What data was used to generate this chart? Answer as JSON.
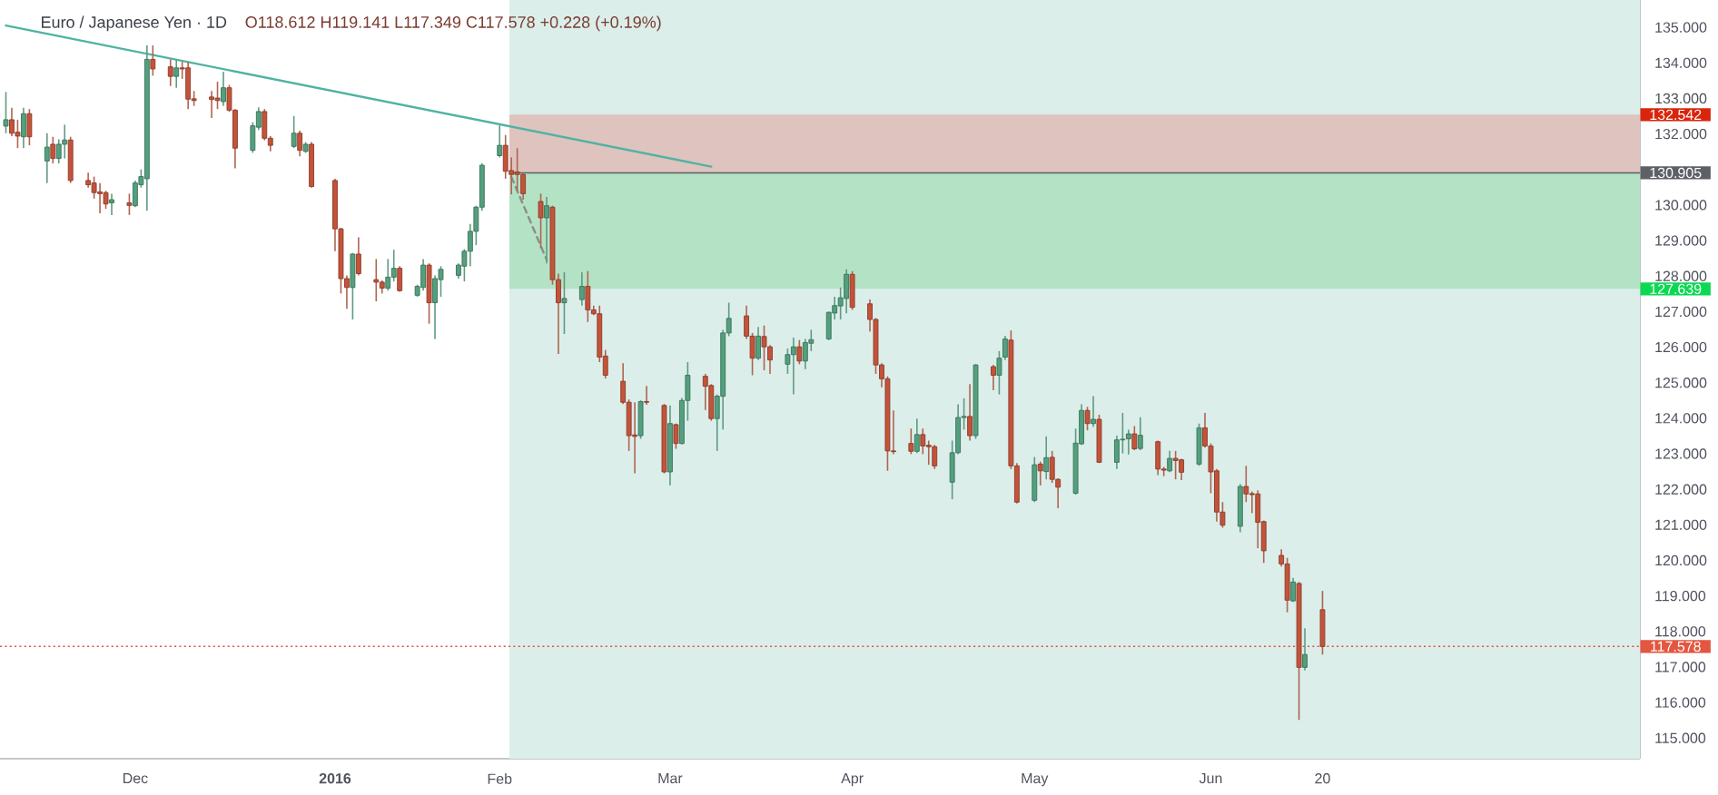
{
  "chart_data": {
    "type": "candlestick",
    "title": "Euro / Japanese Yen · 1D",
    "subtitle": "O118.612 H119.141 L117.349 C117.578 +0.228 (+0.19%)",
    "x": [
      "2015-11-09",
      "2015-11-10",
      "2015-11-11",
      "2015-11-12",
      "2015-11-13",
      "2015-11-16",
      "2015-11-17",
      "2015-11-18",
      "2015-11-19",
      "2015-11-20",
      "2015-11-23",
      "2015-11-24",
      "2015-11-25",
      "2015-11-26",
      "2015-11-27",
      "2015-11-30",
      "2015-12-01",
      "2015-12-02",
      "2015-12-03",
      "2015-12-04",
      "2015-12-07",
      "2015-12-08",
      "2015-12-09",
      "2015-12-10",
      "2015-12-11",
      "2015-12-14",
      "2015-12-15",
      "2015-12-16",
      "2015-12-17",
      "2015-12-18",
      "2015-12-21",
      "2015-12-22",
      "2015-12-23",
      "2015-12-24",
      "2015-12-28",
      "2015-12-29",
      "2015-12-30",
      "2015-12-31",
      "2016-01-04",
      "2016-01-05",
      "2016-01-06",
      "2016-01-07",
      "2016-01-08",
      "2016-01-11",
      "2016-01-12",
      "2016-01-13",
      "2016-01-14",
      "2016-01-15",
      "2016-01-18",
      "2016-01-19",
      "2016-01-20",
      "2016-01-21",
      "2016-01-22",
      "2016-01-25",
      "2016-01-26",
      "2016-01-27",
      "2016-01-28",
      "2016-01-29",
      "2016-02-01",
      "2016-02-02",
      "2016-02-03",
      "2016-02-04",
      "2016-02-05",
      "2016-02-08",
      "2016-02-09",
      "2016-02-10",
      "2016-02-11",
      "2016-02-12",
      "2016-02-15",
      "2016-02-16",
      "2016-02-17",
      "2016-02-18",
      "2016-02-19",
      "2016-02-22",
      "2016-02-23",
      "2016-02-24",
      "2016-02-25",
      "2016-02-26",
      "2016-02-29",
      "2016-03-01",
      "2016-03-02",
      "2016-03-03",
      "2016-03-04",
      "2016-03-07",
      "2016-03-08",
      "2016-03-09",
      "2016-03-10",
      "2016-03-11",
      "2016-03-14",
      "2016-03-15",
      "2016-03-16",
      "2016-03-17",
      "2016-03-18",
      "2016-03-21",
      "2016-03-22",
      "2016-03-23",
      "2016-03-24",
      "2016-03-25",
      "2016-03-28",
      "2016-03-29",
      "2016-03-30",
      "2016-03-31",
      "2016-04-01",
      "2016-04-04",
      "2016-04-05",
      "2016-04-06",
      "2016-04-07",
      "2016-04-08",
      "2016-04-11",
      "2016-04-12",
      "2016-04-13",
      "2016-04-14",
      "2016-04-15",
      "2016-04-18",
      "2016-04-19",
      "2016-04-20",
      "2016-04-21",
      "2016-04-22",
      "2016-04-25",
      "2016-04-26",
      "2016-04-27",
      "2016-04-28",
      "2016-04-29",
      "2016-05-02",
      "2016-05-03",
      "2016-05-04",
      "2016-05-05",
      "2016-05-06",
      "2016-05-09",
      "2016-05-10",
      "2016-05-11",
      "2016-05-12",
      "2016-05-13",
      "2016-05-16",
      "2016-05-17",
      "2016-05-18",
      "2016-05-19",
      "2016-05-20",
      "2016-05-23",
      "2016-05-24",
      "2016-05-25",
      "2016-05-26",
      "2016-05-27",
      "2016-05-30",
      "2016-05-31",
      "2016-06-01",
      "2016-06-02",
      "2016-06-03",
      "2016-06-06",
      "2016-06-07",
      "2016-06-08",
      "2016-06-09",
      "2016-06-10",
      "2016-06-13",
      "2016-06-14",
      "2016-06-15",
      "2016-06-16",
      "2016-06-17",
      "2016-06-20"
    ],
    "ohlc": [
      [
        132.22,
        133.18,
        132.02,
        132.4
      ],
      [
        132.4,
        132.74,
        131.94,
        132.02
      ],
      [
        132.05,
        132.4,
        131.6,
        131.94
      ],
      [
        131.92,
        132.74,
        131.6,
        132.57
      ],
      [
        132.57,
        132.7,
        131.68,
        131.92
      ],
      [
        131.24,
        132.02,
        130.62,
        131.63
      ],
      [
        131.71,
        131.92,
        131.17,
        131.31
      ],
      [
        131.31,
        131.85,
        131.17,
        131.71
      ],
      [
        131.71,
        132.26,
        131.31,
        131.83
      ],
      [
        131.83,
        131.92,
        130.62,
        130.69
      ],
      [
        130.69,
        130.91,
        130.49,
        130.57
      ],
      [
        130.62,
        130.8,
        130.18,
        130.35
      ],
      [
        130.37,
        130.62,
        129.77,
        130.32
      ],
      [
        130.35,
        130.4,
        129.89,
        130.03
      ],
      [
        130.06,
        130.32,
        129.72,
        130.15
      ],
      [
        130.06,
        130.32,
        129.72,
        129.99
      ],
      [
        129.98,
        130.69,
        129.94,
        130.62
      ],
      [
        130.57,
        131.0,
        130.49,
        130.8
      ],
      [
        130.74,
        134.49,
        129.84,
        134.1
      ],
      [
        134.1,
        134.49,
        133.64,
        133.83
      ],
      [
        133.89,
        134.1,
        133.35,
        133.62
      ],
      [
        133.62,
        134.1,
        133.3,
        133.86
      ],
      [
        133.86,
        134.03,
        133.55,
        133.83
      ],
      [
        133.86,
        134.03,
        132.7,
        132.98
      ],
      [
        132.99,
        133.21,
        132.79,
        132.94
      ],
      [
        133.04,
        133.21,
        132.45,
        132.97
      ],
      [
        133.01,
        133.47,
        132.7,
        132.94
      ],
      [
        132.91,
        133.75,
        132.79,
        133.3
      ],
      [
        133.3,
        133.38,
        132.62,
        132.67
      ],
      [
        132.67,
        132.7,
        131.03,
        131.6
      ],
      [
        131.54,
        132.33,
        131.47,
        132.23
      ],
      [
        132.19,
        132.75,
        132.11,
        132.63
      ],
      [
        132.63,
        132.7,
        131.82,
        131.88
      ],
      [
        131.88,
        131.94,
        131.51,
        131.68
      ],
      [
        131.65,
        132.5,
        131.6,
        132.02
      ],
      [
        132.02,
        132.09,
        131.37,
        131.54
      ],
      [
        131.51,
        131.77,
        131.47,
        131.71
      ],
      [
        131.71,
        131.77,
        130.49,
        130.52
      ],
      [
        130.69,
        130.74,
        128.7,
        129.33
      ],
      [
        129.33,
        129.36,
        127.51,
        127.93
      ],
      [
        127.93,
        128.02,
        127.08,
        127.68
      ],
      [
        127.68,
        128.65,
        126.78,
        128.62
      ],
      [
        128.62,
        129.09,
        128.02,
        128.07
      ],
      [
        127.9,
        128.48,
        127.29,
        127.83
      ],
      [
        127.83,
        127.88,
        127.51,
        127.66
      ],
      [
        127.66,
        128.48,
        127.59,
        127.97
      ],
      [
        127.97,
        128.74,
        127.85,
        128.22
      ],
      [
        128.22,
        128.28,
        127.56,
        127.59
      ],
      [
        127.46,
        127.76,
        127.42,
        127.71
      ],
      [
        127.68,
        128.48,
        127.59,
        128.31
      ],
      [
        128.31,
        128.36,
        126.66,
        127.25
      ],
      [
        127.25,
        128.02,
        126.23,
        127.93
      ],
      [
        127.9,
        128.28,
        127.42,
        128.19
      ],
      [
        128.02,
        128.36,
        127.93,
        128.31
      ],
      [
        128.28,
        128.76,
        127.85,
        128.7
      ],
      [
        128.7,
        129.47,
        128.28,
        129.26
      ],
      [
        129.26,
        129.98,
        128.87,
        129.94
      ],
      [
        129.94,
        131.17,
        129.84,
        131.12
      ],
      [
        131.39,
        132.24,
        131.34,
        131.68
      ],
      [
        131.68,
        131.97,
        130.74,
        130.95
      ],
      [
        130.97,
        131.34,
        130.3,
        130.86
      ],
      [
        130.93,
        131.6,
        130.4,
        130.86
      ],
      [
        130.86,
        130.91,
        130.15,
        130.32
      ],
      [
        130.1,
        130.32,
        128.79,
        129.64
      ],
      [
        129.64,
        130.23,
        128.36,
        129.98
      ],
      [
        129.94,
        129.98,
        127.76,
        127.9
      ],
      [
        127.9,
        128.07,
        125.81,
        127.25
      ],
      [
        127.25,
        128.11,
        126.37,
        127.37
      ],
      [
        127.34,
        128.11,
        127.17,
        127.71
      ],
      [
        127.71,
        128.14,
        126.71,
        127.05
      ],
      [
        127.05,
        127.17,
        126.9,
        126.94
      ],
      [
        126.94,
        127.17,
        125.58,
        125.72
      ],
      [
        125.75,
        125.92,
        125.12,
        125.21
      ],
      [
        125.04,
        125.55,
        124.4,
        124.45
      ],
      [
        124.45,
        124.53,
        123.08,
        123.51
      ],
      [
        123.53,
        124.45,
        122.45,
        123.49
      ],
      [
        123.51,
        124.5,
        123.42,
        124.47
      ],
      [
        124.47,
        124.91,
        124.38,
        124.45
      ],
      [
        124.36,
        124.4,
        122.45,
        122.49
      ],
      [
        122.49,
        124.36,
        122.11,
        123.85
      ],
      [
        123.82,
        123.85,
        123.14,
        123.29
      ],
      [
        123.29,
        124.57,
        123.26,
        124.5
      ],
      [
        124.5,
        125.58,
        123.93,
        125.21
      ],
      [
        125.18,
        125.25,
        124.23,
        124.9
      ],
      [
        124.92,
        124.96,
        123.93,
        123.99
      ],
      [
        123.99,
        124.67,
        123.08,
        124.62
      ],
      [
        124.62,
        126.49,
        123.68,
        126.4
      ],
      [
        126.4,
        127.25,
        126.31,
        126.81
      ],
      [
        126.88,
        127.17,
        126.23,
        126.31
      ],
      [
        126.31,
        126.4,
        125.21,
        125.69
      ],
      [
        125.69,
        126.57,
        125.64,
        126.31
      ],
      [
        126.3,
        126.61,
        125.35,
        126.01
      ],
      [
        126.01,
        126.06,
        125.25,
        125.64
      ],
      [
        125.52,
        125.96,
        125.25,
        125.79
      ],
      [
        125.79,
        126.27,
        124.67,
        126.01
      ],
      [
        126.01,
        126.2,
        125.52,
        125.61
      ],
      [
        125.61,
        126.23,
        125.38,
        126.13
      ],
      [
        126.11,
        126.49,
        125.89,
        126.21
      ],
      [
        126.23,
        127.0,
        126.2,
        126.98
      ],
      [
        126.96,
        127.42,
        126.78,
        127.17
      ],
      [
        127.16,
        127.68,
        126.78,
        127.39
      ],
      [
        127.37,
        128.19,
        126.95,
        128.05
      ],
      [
        128.05,
        128.14,
        127.05,
        127.12
      ],
      [
        127.22,
        127.34,
        126.44,
        126.78
      ],
      [
        126.78,
        126.82,
        125.25,
        125.5
      ],
      [
        125.5,
        125.55,
        124.87,
        125.11
      ],
      [
        125.11,
        125.18,
        122.52,
        123.08
      ],
      [
        123.08,
        124.22,
        122.99,
        123.06
      ],
      [
        123.29,
        123.71,
        122.99,
        123.07
      ],
      [
        123.07,
        123.99,
        123.02,
        123.54
      ],
      [
        123.54,
        123.71,
        122.99,
        123.22
      ],
      [
        123.24,
        123.37,
        122.69,
        123.2
      ],
      [
        123.2,
        123.25,
        122.57,
        122.66
      ],
      [
        122.2,
        123.37,
        121.72,
        123.03
      ],
      [
        123.03,
        124.39,
        122.99,
        124.02
      ],
      [
        124.02,
        124.56,
        123.68,
        124.05
      ],
      [
        124.05,
        124.96,
        123.37,
        123.51
      ],
      [
        123.51,
        125.52,
        123.42,
        125.5
      ],
      [
        125.45,
        125.5,
        124.79,
        125.21
      ],
      [
        125.21,
        125.89,
        124.67,
        125.69
      ],
      [
        125.72,
        126.32,
        125.64,
        126.23
      ],
      [
        126.2,
        126.47,
        122.57,
        122.66
      ],
      [
        122.66,
        122.74,
        121.6,
        121.64
      ],
      [
        121.69,
        122.91,
        121.64,
        122.69
      ],
      [
        122.71,
        122.78,
        122.11,
        122.52
      ],
      [
        122.5,
        123.49,
        122.28,
        122.89
      ],
      [
        122.9,
        123.08,
        122.18,
        122.28
      ],
      [
        122.28,
        122.31,
        121.47,
        122.06
      ],
      [
        121.89,
        123.71,
        121.85,
        123.3
      ],
      [
        123.28,
        124.39,
        123.25,
        124.22
      ],
      [
        124.22,
        124.32,
        123.66,
        123.85
      ],
      [
        123.85,
        124.62,
        123.76,
        123.97
      ],
      [
        123.97,
        124.1,
        122.74,
        122.76
      ],
      [
        122.76,
        123.51,
        122.57,
        123.39
      ],
      [
        123.39,
        124.15,
        123.01,
        123.41
      ],
      [
        123.42,
        123.68,
        122.98,
        123.56
      ],
      [
        123.56,
        123.78,
        123.1,
        123.14
      ],
      [
        123.15,
        124.03,
        123.1,
        123.52
      ],
      [
        123.34,
        123.37,
        122.4,
        122.57
      ],
      [
        122.57,
        122.63,
        122.37,
        122.54
      ],
      [
        122.52,
        123.08,
        122.48,
        122.87
      ],
      [
        122.87,
        123.08,
        122.28,
        122.81
      ],
      [
        122.83,
        122.86,
        122.26,
        122.48
      ],
      [
        122.71,
        123.85,
        122.66,
        123.73
      ],
      [
        123.73,
        124.15,
        123.17,
        123.22
      ],
      [
        123.22,
        123.29,
        121.89,
        122.49
      ],
      [
        122.52,
        122.57,
        121.09,
        121.36
      ],
      [
        121.36,
        121.64,
        120.92,
        120.99
      ],
      [
        120.96,
        122.15,
        120.79,
        122.08
      ],
      [
        122.08,
        122.66,
        121.64,
        121.87
      ],
      [
        121.88,
        121.94,
        121.33,
        121.85
      ],
      [
        121.87,
        121.97,
        120.34,
        121.07
      ],
      [
        121.09,
        121.12,
        119.93,
        120.27
      ],
      [
        120.14,
        120.31,
        119.83,
        119.9
      ],
      [
        119.9,
        120.07,
        118.54,
        118.88
      ],
      [
        118.86,
        119.51,
        118.83,
        119.39
      ],
      [
        119.35,
        119.39,
        115.51,
        116.99
      ],
      [
        116.99,
        118.09,
        116.9,
        117.35
      ],
      [
        118.612,
        119.141,
        117.349,
        117.578
      ]
    ],
    "colors": [
      "#53a07e",
      "#c4533a",
      "#c4533a",
      "#53a07e",
      "#c4533a",
      "#53a07e",
      "#c4533a",
      "#53a07e",
      "#53a07e",
      "#c4533a",
      "#c4533a",
      "#c4533a",
      "#c4533a",
      "#c4533a",
      "#53a07e",
      "#c4533a",
      "#53a07e",
      "#53a07e",
      "#53a07e",
      "#c4533a",
      "#c4533a",
      "#53a07e",
      "#c4533a",
      "#c4533a",
      "#c4533a",
      "#c4533a",
      "#c4533a",
      "#53a07e",
      "#c4533a",
      "#c4533a",
      "#53a07e",
      "#53a07e",
      "#c4533a",
      "#c4533a",
      "#53a07e",
      "#c4533a",
      "#53a07e",
      "#c4533a",
      "#c4533a",
      "#c4533a",
      "#c4533a",
      "#53a07e",
      "#c4533a",
      "#c4533a",
      "#c4533a",
      "#53a07e",
      "#53a07e",
      "#c4533a",
      "#53a07e",
      "#53a07e",
      "#c4533a",
      "#53a07e",
      "#53a07e",
      "#53a07e",
      "#53a07e",
      "#53a07e",
      "#53a07e",
      "#53a07e",
      "#53a07e",
      "#c4533a",
      "#c4533a",
      "#c4533a",
      "#c4533a",
      "#c4533a",
      "#53a07e",
      "#c4533a",
      "#c4533a",
      "#53a07e",
      "#53a07e",
      "#c4533a",
      "#c4533a",
      "#c4533a",
      "#c4533a",
      "#c4533a",
      "#c4533a",
      "#c4533a",
      "#53a07e",
      "#c4533a",
      "#c4533a",
      "#53a07e",
      "#c4533a",
      "#53a07e",
      "#53a07e",
      "#c4533a",
      "#c4533a",
      "#53a07e",
      "#53a07e",
      "#53a07e",
      "#c4533a",
      "#c4533a",
      "#53a07e",
      "#c4533a",
      "#c4533a",
      "#53a07e",
      "#53a07e",
      "#c4533a",
      "#53a07e",
      "#53a07e",
      "#53a07e",
      "#53a07e",
      "#53a07e",
      "#53a07e",
      "#c4533a",
      "#c4533a",
      "#c4533a",
      "#c4533a",
      "#c4533a",
      "#c4533a",
      "#c4533a",
      "#53a07e",
      "#c4533a",
      "#c4533a",
      "#c4533a",
      "#53a07e",
      "#53a07e",
      "#53a07e",
      "#c4533a",
      "#53a07e",
      "#c4533a",
      "#53a07e",
      "#53a07e",
      "#c4533a",
      "#c4533a",
      "#53a07e",
      "#c4533a",
      "#53a07e",
      "#c4533a",
      "#c4533a",
      "#53a07e",
      "#53a07e",
      "#c4533a",
      "#53a07e",
      "#c4533a",
      "#53a07e",
      "#53a07e",
      "#53a07e",
      "#c4533a",
      "#53a07e",
      "#c4533a",
      "#c4533a",
      "#53a07e",
      "#c4533a",
      "#c4533a",
      "#53a07e",
      "#c4533a",
      "#c4533a",
      "#c4533a",
      "#c4533a",
      "#53a07e",
      "#c4533a",
      "#c4533a",
      "#c4533a",
      "#c4533a",
      "#c4533a",
      "#c4533a",
      "#53a07e",
      "#c4533a",
      "#53a07e",
      "#c4533a"
    ],
    "series": [
      {
        "type": "line",
        "x": [
          "2015-11-09",
          "2016-03-08"
        ],
        "values": [
          135.05,
          131.08
        ],
        "color": "#4fb3a3"
      },
      {
        "type": "line",
        "x": [
          "2016-02-03",
          "2016-02-09"
        ],
        "values": [
          130.79,
          128.46
        ],
        "color": "#8c8c8c",
        "line_style": "dashed"
      }
    ],
    "xlim": [
      "2015-11-08",
      "2016-08-13"
    ],
    "xticks": [
      {
        "value": "2015-12-01",
        "label": "Dec"
      },
      {
        "value": "2016-01-04",
        "label": "2016"
      },
      {
        "value": "2016-02-01",
        "label": "Feb"
      },
      {
        "value": "2016-03-01",
        "label": "Mar"
      },
      {
        "value": "2016-04-01",
        "label": "Apr"
      },
      {
        "value": "2016-05-02",
        "label": "May"
      },
      {
        "value": "2016-06-01",
        "label": "Jun"
      },
      {
        "value": "2016-06-20",
        "label": "20"
      }
    ],
    "ylim": [
      114.42,
      135.77
    ],
    "yticks": [
      {
        "value": 115,
        "label": "115.000"
      },
      {
        "value": 116,
        "label": "116.000"
      },
      {
        "value": 117,
        "label": "117.000"
      },
      {
        "value": 118,
        "label": "118.000"
      },
      {
        "value": 119,
        "label": "119.000"
      },
      {
        "value": 120,
        "label": "120.000"
      },
      {
        "value": 121,
        "label": "121.000"
      },
      {
        "value": 122,
        "label": "122.000"
      },
      {
        "value": 123,
        "label": "123.000"
      },
      {
        "value": 124,
        "label": "124.000"
      },
      {
        "value": 125,
        "label": "125.000"
      },
      {
        "value": 126,
        "label": "126.000"
      },
      {
        "value": 127,
        "label": "127.000"
      },
      {
        "value": 128,
        "label": "128.000"
      },
      {
        "value": 129,
        "label": "129.000"
      },
      {
        "value": 130,
        "label": "130.000"
      },
      {
        "value": 132,
        "label": "132.000"
      },
      {
        "value": 133,
        "label": "133.000"
      },
      {
        "value": 134,
        "label": "134.000"
      },
      {
        "value": 135,
        "label": "135.000"
      }
    ],
    "bands": [
      {
        "axis": "x",
        "from": "2016-02-02T16:00",
        "to": "2016-08-13",
        "color": "#dbeeea"
      },
      {
        "axis": "y",
        "from": 130.905,
        "to": 132.542,
        "label": "132.542",
        "color": "#dfc3bf"
      },
      {
        "axis": "y",
        "from": 130.905,
        "to": 127.639,
        "label": "127.639",
        "color": "#b4e2c4"
      }
    ],
    "ref_lines": [
      {
        "axis": "y",
        "value": 130.905,
        "label": "130.905",
        "color": "#5d6066"
      },
      {
        "axis": "y",
        "value": 117.578,
        "label": "117.578",
        "color": "#e3563f",
        "line_style": "dotted"
      }
    ]
  }
}
